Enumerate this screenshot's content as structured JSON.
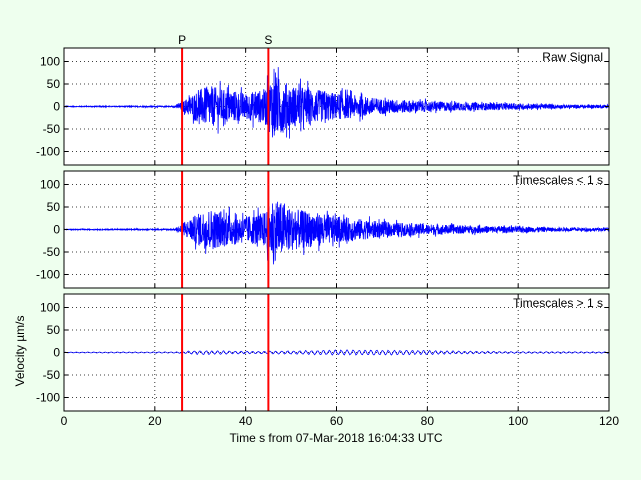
{
  "figure": {
    "background": "#eeffee",
    "xlabel": "Time s from 07-Mar-2018 16:04:33 UTC",
    "ylabel": "Velocity µm/s"
  },
  "chart_data": [
    {
      "type": "line",
      "title": "Raw Signal",
      "xlim": [
        0,
        120
      ],
      "ylim": [
        -130,
        130
      ],
      "xticks": [
        0,
        20,
        40,
        60,
        80,
        100,
        120
      ],
      "yticks": [
        -100,
        -50,
        0,
        50,
        100
      ],
      "grid": true,
      "series_color": "#0000ff",
      "envelope": {
        "description_free": true,
        "x": [
          0,
          24,
          25,
          26,
          28,
          30,
          32,
          35,
          38,
          40,
          44,
          45,
          46,
          48,
          50,
          55,
          60,
          65,
          70,
          80,
          90,
          100,
          110,
          120
        ],
        "amplitude": [
          1,
          1.5,
          6,
          12,
          30,
          45,
          55,
          45,
          40,
          35,
          45,
          60,
          85,
          70,
          55,
          45,
          35,
          28,
          20,
          14,
          10,
          8,
          5,
          4
        ]
      },
      "markers": [
        {
          "label": "P",
          "x": 26,
          "color": "#ff0000"
        },
        {
          "label": "S",
          "x": 45,
          "color": "#ff0000"
        }
      ]
    },
    {
      "type": "line",
      "title": "Timescales < 1 s",
      "xlim": [
        0,
        120
      ],
      "ylim": [
        -130,
        130
      ],
      "xticks": [
        0,
        20,
        40,
        60,
        80,
        100,
        120
      ],
      "yticks": [
        -100,
        -50,
        0,
        50,
        100
      ],
      "grid": true,
      "series_color": "#0000ff",
      "envelope": {
        "x": [
          0,
          24,
          25,
          26,
          28,
          30,
          32,
          35,
          38,
          40,
          44,
          45,
          46,
          48,
          50,
          55,
          60,
          65,
          70,
          80,
          90,
          100,
          110,
          120
        ],
        "amplitude": [
          1,
          1.5,
          6,
          12,
          30,
          45,
          55,
          45,
          40,
          35,
          45,
          60,
          85,
          70,
          55,
          45,
          35,
          28,
          20,
          14,
          10,
          8,
          5,
          4
        ]
      },
      "markers": [
        {
          "x": 26,
          "color": "#ff0000"
        },
        {
          "x": 45,
          "color": "#ff0000"
        }
      ]
    },
    {
      "type": "line",
      "title": "Timescales > 1 s",
      "xlim": [
        0,
        120
      ],
      "ylim": [
        -130,
        130
      ],
      "xticks": [
        0,
        20,
        40,
        60,
        80,
        100,
        120
      ],
      "yticks": [
        -100,
        -50,
        0,
        50,
        100
      ],
      "grid": true,
      "series_color": "#0000ff",
      "envelope": {
        "x": [
          0,
          25,
          30,
          35,
          40,
          50,
          60,
          70,
          80,
          90,
          100,
          110,
          120
        ],
        "amplitude": [
          1,
          1.5,
          5,
          4,
          3,
          4,
          6,
          6,
          5,
          3,
          2,
          2,
          1.5
        ]
      },
      "markers": [
        {
          "x": 26,
          "color": "#ff0000"
        },
        {
          "x": 45,
          "color": "#ff0000"
        }
      ]
    }
  ]
}
